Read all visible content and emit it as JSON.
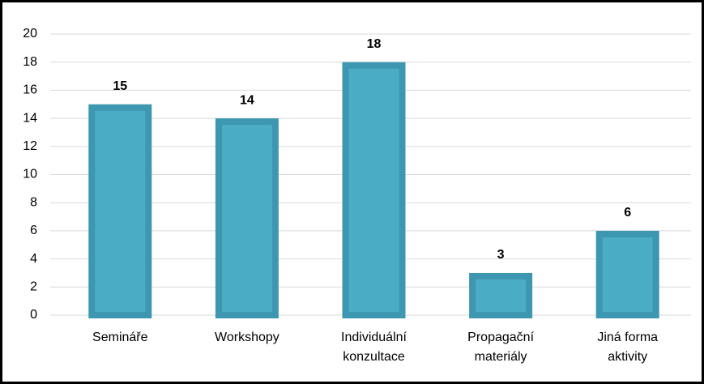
{
  "chart_data": {
    "type": "bar",
    "categories": [
      [
        "Semináře"
      ],
      [
        "Workshopy"
      ],
      [
        "Individuální",
        "konzultace"
      ],
      [
        "Propagační",
        "materiály"
      ],
      [
        "Jiná forma",
        "aktivity"
      ]
    ],
    "values": [
      15,
      14,
      18,
      3,
      6
    ],
    "color": "#4bacc6",
    "ylim": [
      0,
      20
    ],
    "yticks": [
      0,
      2,
      4,
      6,
      8,
      10,
      12,
      14,
      16,
      18,
      20
    ],
    "grid": true
  }
}
